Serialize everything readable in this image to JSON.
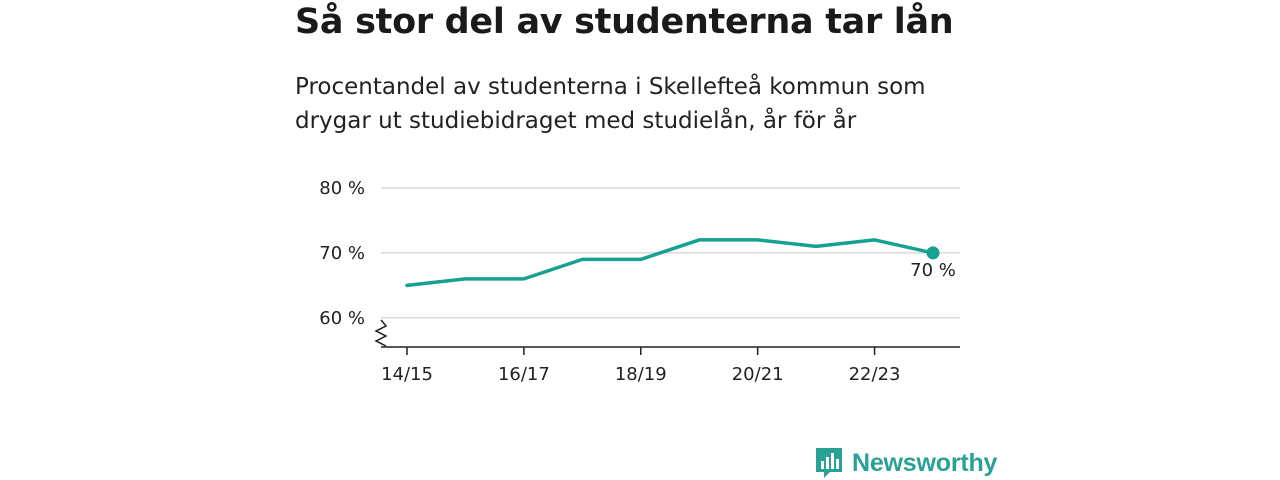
{
  "title": "Så stor del av studenterna tar lån",
  "subtitle": "Procentandel av studenterna i Skellefteå kommun som drygar ut studiebidraget med studielån, år för år",
  "brand": {
    "name": "Newsworthy",
    "logo_icon": "bar-chart-speech-bubble-icon",
    "color": "#2aa197"
  },
  "chart_data": {
    "type": "line",
    "x": [
      "14/15",
      "15/16",
      "16/17",
      "17/18",
      "18/19",
      "19/20",
      "20/21",
      "21/22",
      "22/23",
      "23/24"
    ],
    "values": [
      65,
      66,
      66,
      69,
      69,
      72,
      72,
      71,
      72,
      70
    ],
    "x_tick_labels": [
      "14/15",
      "16/17",
      "18/19",
      "20/21",
      "22/23"
    ],
    "y_ticks": [
      "60 %",
      "70 %",
      "80 %"
    ],
    "y_tick_values": [
      60,
      70,
      80
    ],
    "ylim": [
      55.5,
      80
    ],
    "end_label": "70 %",
    "line_color": "#17a192",
    "grid": true,
    "axis_break": true
  }
}
